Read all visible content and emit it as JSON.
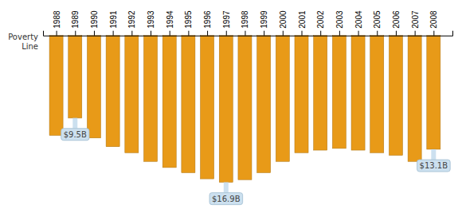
{
  "chart_data": {
    "type": "bar",
    "x": [
      1988,
      1989,
      1990,
      1991,
      1992,
      1993,
      1994,
      1995,
      1996,
      1997,
      1998,
      1999,
      2000,
      2001,
      2002,
      2003,
      2004,
      2005,
      2006,
      2007,
      2008
    ],
    "values": [
      11.5,
      9.5,
      11.8,
      12.8,
      13.5,
      14.5,
      15.2,
      15.8,
      16.5,
      16.9,
      16.6,
      15.8,
      14.5,
      13.5,
      13.2,
      13.0,
      13.2,
      13.5,
      13.8,
      14.5,
      13.1
    ],
    "color": "#E89A18",
    "xlim": [
      1987.3,
      2009.0
    ],
    "xticks": [
      1988,
      1989,
      1990,
      1991,
      1992,
      1993,
      1994,
      1995,
      1996,
      1997,
      1998,
      1999,
      2000,
      2001,
      2002,
      2003,
      2004,
      2005,
      2006,
      2007,
      2008
    ],
    "ylim": [
      18.5,
      -0.8
    ],
    "tick_labels": "x",
    "grid": false,
    "annotations": [
      {
        "x": 1989,
        "y": 9.5,
        "text": "$9.5B"
      },
      {
        "x": 1997,
        "y": 16.9,
        "text": "$16.9B"
      },
      {
        "x": 2008,
        "y": 13.1,
        "text": "$13.1B"
      },
      {
        "text": "Poverty\nLine"
      }
    ]
  }
}
